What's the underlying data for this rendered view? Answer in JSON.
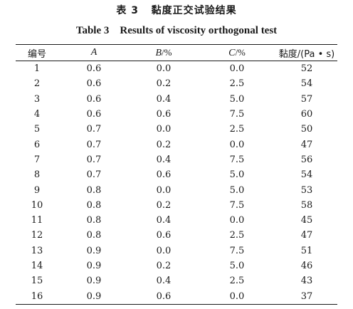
{
  "caption": {
    "cn": "表 3   黏度正交试验结果",
    "en": "Table 3    Results of viscosity orthogonal test"
  },
  "headers": {
    "no": "编号",
    "a": "A",
    "b_var": "B",
    "b_unit": "/%",
    "c_var": "C",
    "c_unit": "/%",
    "visc": "黏度/(Pa • s)"
  },
  "rows": [
    {
      "no": "1",
      "a": "0.6",
      "b": "0.0",
      "c": "0.0",
      "v": "52"
    },
    {
      "no": "2",
      "a": "0.6",
      "b": "0.2",
      "c": "2.5",
      "v": "54"
    },
    {
      "no": "3",
      "a": "0.6",
      "b": "0.4",
      "c": "5.0",
      "v": "57"
    },
    {
      "no": "4",
      "a": "0.6",
      "b": "0.6",
      "c": "7.5",
      "v": "60"
    },
    {
      "no": "5",
      "a": "0.7",
      "b": "0.0",
      "c": "2.5",
      "v": "50"
    },
    {
      "no": "6",
      "a": "0.7",
      "b": "0.2",
      "c": "0.0",
      "v": "47"
    },
    {
      "no": "7",
      "a": "0.7",
      "b": "0.4",
      "c": "7.5",
      "v": "56"
    },
    {
      "no": "8",
      "a": "0.7",
      "b": "0.6",
      "c": "5.0",
      "v": "54"
    },
    {
      "no": "9",
      "a": "0.8",
      "b": "0.0",
      "c": "5.0",
      "v": "53"
    },
    {
      "no": "10",
      "a": "0.8",
      "b": "0.2",
      "c": "7.5",
      "v": "58"
    },
    {
      "no": "11",
      "a": "0.8",
      "b": "0.4",
      "c": "0.0",
      "v": "45"
    },
    {
      "no": "12",
      "a": "0.8",
      "b": "0.6",
      "c": "2.5",
      "v": "47"
    },
    {
      "no": "13",
      "a": "0.9",
      "b": "0.0",
      "c": "7.5",
      "v": "51"
    },
    {
      "no": "14",
      "a": "0.9",
      "b": "0.2",
      "c": "5.0",
      "v": "46"
    },
    {
      "no": "15",
      "a": "0.9",
      "b": "0.4",
      "c": "2.5",
      "v": "43"
    },
    {
      "no": "16",
      "a": "0.9",
      "b": "0.6",
      "c": "0.0",
      "v": "37"
    }
  ]
}
